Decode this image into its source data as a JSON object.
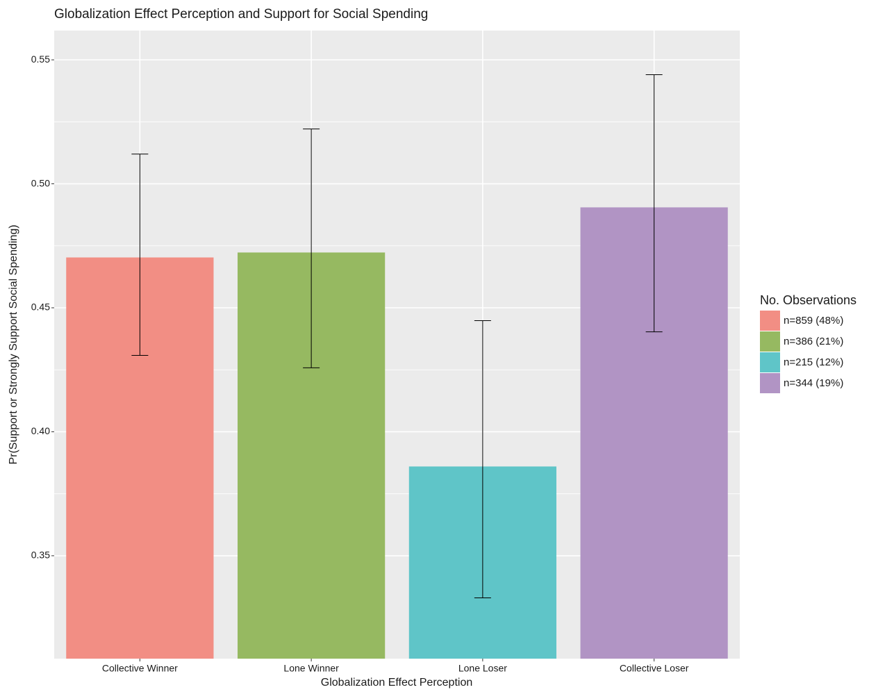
{
  "chart_data": {
    "type": "bar",
    "title": "Globalization Effect Perception and Support for Social Spending",
    "x_label": "Globalization Effect Perception",
    "y_label": "Pr(Support or Strongly Support Social Spending)",
    "categories": [
      "Collective Winner",
      "Lone Winner",
      "Lone Loser",
      "Collective Loser"
    ],
    "values": [
      0.4703,
      0.4723,
      0.386,
      0.4905
    ],
    "error_lower": [
      0.4308,
      0.4258,
      0.333,
      0.4403
    ],
    "error_upper": [
      0.512,
      0.5221,
      0.4448,
      0.544
    ],
    "colors": [
      "#f28e84",
      "#96b961",
      "#5fc5c8",
      "#b194c4"
    ],
    "legend": {
      "title": "No. Observations",
      "labels": [
        "n=859 (48%)",
        "n=386 (21%)",
        "n=215 (12%)",
        "n=344 (19%)"
      ],
      "position": "right"
    },
    "ylim": [
      0.3085,
      0.5618
    ],
    "yticks": [
      {
        "value": 0.35,
        "label": "0.35"
      },
      {
        "value": 0.4,
        "label": "0.40"
      },
      {
        "value": 0.45,
        "label": "0.45"
      },
      {
        "value": 0.5,
        "label": "0.50"
      },
      {
        "value": 0.55,
        "label": "0.55"
      }
    ],
    "grid": true
  }
}
